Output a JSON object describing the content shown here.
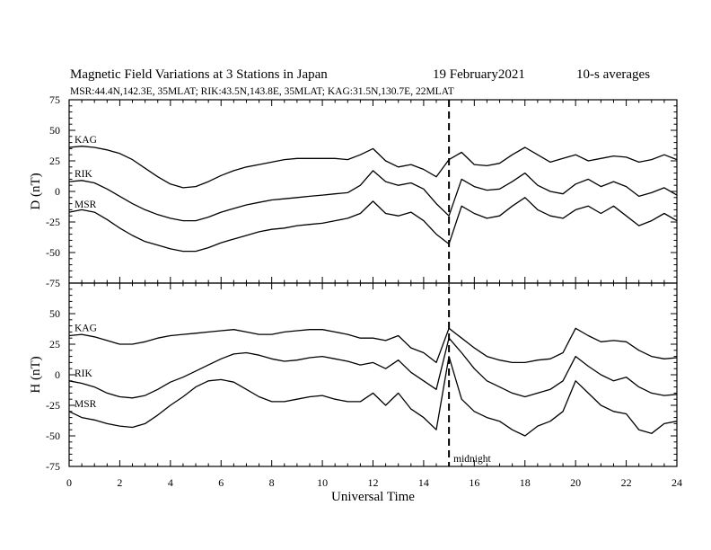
{
  "header": {
    "title": "Magnetic Field Variations at 3 Stations in Japan",
    "date": "19 February2021",
    "averaging": "10-s averages",
    "stations_line": "MSR:44.4N,142.3E, 35MLAT;  RIK:43.5N,143.8E, 35MLAT;  KAG:31.5N,130.7E, 22MLAT"
  },
  "chart_data": [
    {
      "type": "line",
      "ylabel": "D (nT)",
      "xlabel": "",
      "xlim": [
        0,
        24
      ],
      "ylim": [
        -75,
        75
      ],
      "yticks": [
        75,
        50,
        25,
        0,
        -25,
        -50,
        -75
      ],
      "x": [
        0,
        0.5,
        1,
        1.5,
        2,
        2.5,
        3,
        3.5,
        4,
        4.5,
        5,
        5.5,
        6,
        6.5,
        7,
        7.5,
        8,
        8.5,
        9,
        9.5,
        10,
        10.5,
        11,
        11.5,
        12,
        12.5,
        13,
        13.5,
        14,
        14.5,
        15,
        15.5,
        16,
        16.5,
        17,
        17.5,
        18,
        18.5,
        19,
        19.5,
        20,
        20.5,
        21,
        21.5,
        22,
        22.5,
        23,
        23.5,
        24
      ],
      "series": [
        {
          "name": "KAG",
          "values": [
            36,
            37,
            36,
            34,
            31,
            26,
            19,
            12,
            6,
            3,
            4,
            8,
            13,
            17,
            20,
            22,
            24,
            26,
            27,
            27,
            27,
            27,
            26,
            30,
            35,
            25,
            20,
            22,
            18,
            12,
            26,
            32,
            22,
            21,
            23,
            30,
            36,
            30,
            24,
            27,
            30,
            25,
            27,
            29,
            28,
            24,
            26,
            30,
            26
          ]
        },
        {
          "name": "RIK",
          "values": [
            8,
            9,
            7,
            2,
            -4,
            -10,
            -15,
            -19,
            -22,
            -24,
            -24,
            -21,
            -17,
            -14,
            -11,
            -9,
            -7,
            -6,
            -5,
            -4,
            -3,
            -2,
            -1,
            5,
            17,
            8,
            5,
            7,
            2,
            -10,
            -20,
            10,
            4,
            1,
            2,
            8,
            15,
            5,
            0,
            -2,
            6,
            10,
            4,
            8,
            4,
            -4,
            -1,
            3,
            -3
          ]
        },
        {
          "name": "MSR",
          "values": [
            -17,
            -15,
            -17,
            -23,
            -30,
            -36,
            -41,
            -44,
            -47,
            -49,
            -49,
            -46,
            -42,
            -39,
            -36,
            -33,
            -31,
            -30,
            -28,
            -27,
            -26,
            -24,
            -22,
            -18,
            -8,
            -18,
            -20,
            -17,
            -24,
            -35,
            -43,
            -12,
            -18,
            -22,
            -20,
            -12,
            -5,
            -15,
            -20,
            -22,
            -15,
            -12,
            -18,
            -12,
            -20,
            -28,
            -24,
            -18,
            -24
          ]
        }
      ]
    },
    {
      "type": "line",
      "ylabel": "H (nT)",
      "xlabel": "Universal Time",
      "xlim": [
        0,
        24
      ],
      "ylim": [
        -75,
        75
      ],
      "yticks": [
        75,
        50,
        25,
        0,
        -25,
        -50,
        -75
      ],
      "xticks": [
        0,
        2,
        4,
        6,
        8,
        10,
        12,
        14,
        16,
        18,
        20,
        22,
        24
      ],
      "x": [
        0,
        0.5,
        1,
        1.5,
        2,
        2.5,
        3,
        3.5,
        4,
        4.5,
        5,
        5.5,
        6,
        6.5,
        7,
        7.5,
        8,
        8.5,
        9,
        9.5,
        10,
        10.5,
        11,
        11.5,
        12,
        12.5,
        13,
        13.5,
        14,
        14.5,
        15,
        15.5,
        16,
        16.5,
        17,
        17.5,
        18,
        18.5,
        19,
        19.5,
        20,
        20.5,
        21,
        21.5,
        22,
        22.5,
        23,
        23.5,
        24
      ],
      "series": [
        {
          "name": "KAG",
          "values": [
            32,
            33,
            31,
            28,
            25,
            25,
            27,
            30,
            32,
            33,
            34,
            35,
            36,
            37,
            35,
            33,
            33,
            35,
            36,
            37,
            37,
            35,
            33,
            30,
            30,
            28,
            32,
            22,
            18,
            10,
            38,
            30,
            22,
            15,
            12,
            10,
            10,
            12,
            13,
            18,
            38,
            32,
            27,
            28,
            27,
            20,
            15,
            13,
            14
          ]
        },
        {
          "name": "RIK",
          "values": [
            -5,
            -7,
            -10,
            -15,
            -18,
            -19,
            -17,
            -12,
            -6,
            -2,
            3,
            8,
            13,
            17,
            18,
            16,
            13,
            11,
            12,
            14,
            15,
            13,
            11,
            8,
            10,
            5,
            12,
            2,
            -5,
            -12,
            30,
            18,
            5,
            -5,
            -10,
            -15,
            -18,
            -15,
            -12,
            -5,
            15,
            7,
            0,
            -5,
            -2,
            -10,
            -15,
            -17,
            -16
          ]
        },
        {
          "name": "MSR",
          "values": [
            -30,
            -35,
            -37,
            -40,
            -42,
            -43,
            -40,
            -33,
            -25,
            -18,
            -10,
            -5,
            -4,
            -6,
            -12,
            -18,
            -22,
            -22,
            -20,
            -18,
            -17,
            -20,
            -22,
            -22,
            -15,
            -25,
            -15,
            -28,
            -35,
            -45,
            15,
            -20,
            -30,
            -35,
            -38,
            -45,
            -50,
            -42,
            -38,
            -30,
            -5,
            -15,
            -25,
            -30,
            -32,
            -45,
            -48,
            -40,
            -38
          ]
        }
      ]
    }
  ],
  "annotations": {
    "midnight_label": "midnight",
    "midnight_ut": 15
  }
}
